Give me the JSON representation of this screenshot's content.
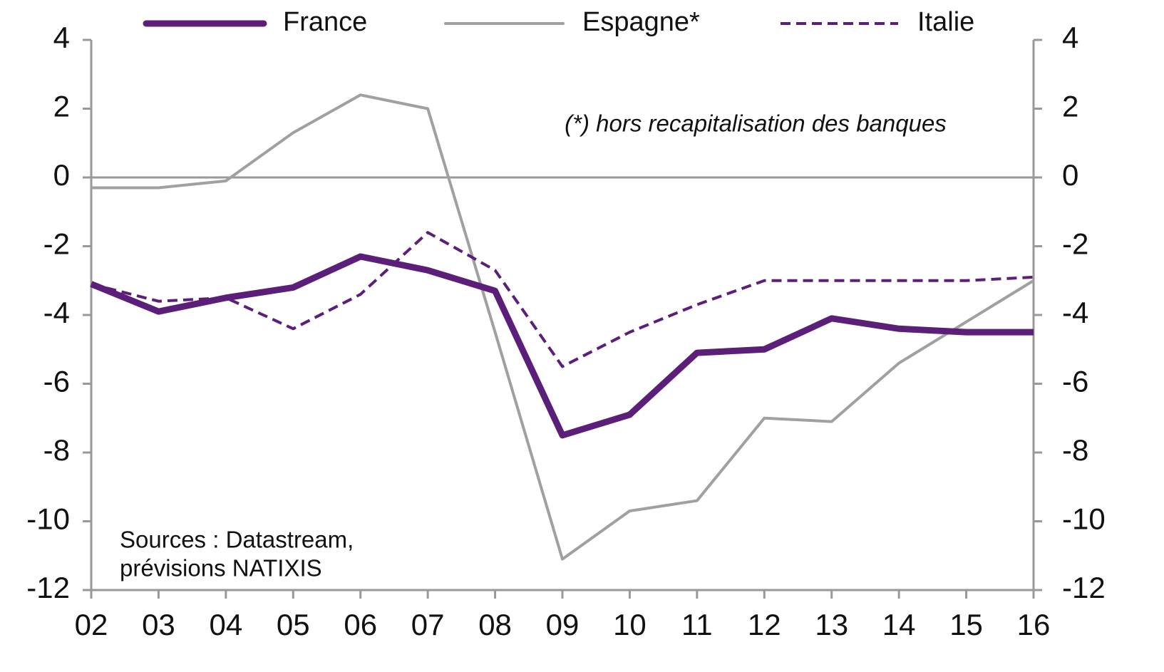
{
  "chart_data": {
    "type": "line",
    "categories": [
      "02",
      "03",
      "04",
      "05",
      "06",
      "07",
      "08",
      "09",
      "10",
      "11",
      "12",
      "13",
      "14",
      "15",
      "16"
    ],
    "series": [
      {
        "name": "France",
        "color": "#5b1f7a",
        "style": "solid",
        "width": 9,
        "values": [
          -3.1,
          -3.9,
          -3.5,
          -3.2,
          -2.3,
          -2.7,
          -3.3,
          -7.5,
          -6.9,
          -5.1,
          -5.0,
          -4.1,
          -4.4,
          -4.5,
          -4.5
        ]
      },
      {
        "name": "Espagne*",
        "color": "#a0a0a0",
        "style": "solid",
        "width": 4,
        "values": [
          -0.3,
          -0.3,
          -0.1,
          1.3,
          2.4,
          2.0,
          -4.5,
          -11.1,
          -9.7,
          -9.4,
          -7.0,
          -7.1,
          -5.4,
          -4.2,
          -3.0
        ]
      },
      {
        "name": "Italie",
        "color": "#5b1f7a",
        "style": "dashed",
        "width": 4,
        "values": [
          -3.1,
          -3.6,
          -3.5,
          -4.4,
          -3.4,
          -1.6,
          -2.7,
          -5.5,
          -4.5,
          -3.7,
          -3.0,
          -3.0,
          -3.0,
          -3.0,
          -2.9
        ]
      }
    ],
    "ylim": [
      -12,
      4
    ],
    "yticks": [
      4,
      2,
      0,
      -2,
      -4,
      -6,
      -8,
      -10,
      -12
    ],
    "y2lim": [
      -12,
      4
    ],
    "y2ticks": [
      4,
      2,
      0,
      -2,
      -4,
      -6,
      -8,
      -10,
      -12
    ],
    "annotation": "(*) hors recapitalisation des banques",
    "sources": [
      "Sources : Datastream,",
      "prévisions NATIXIS"
    ]
  }
}
